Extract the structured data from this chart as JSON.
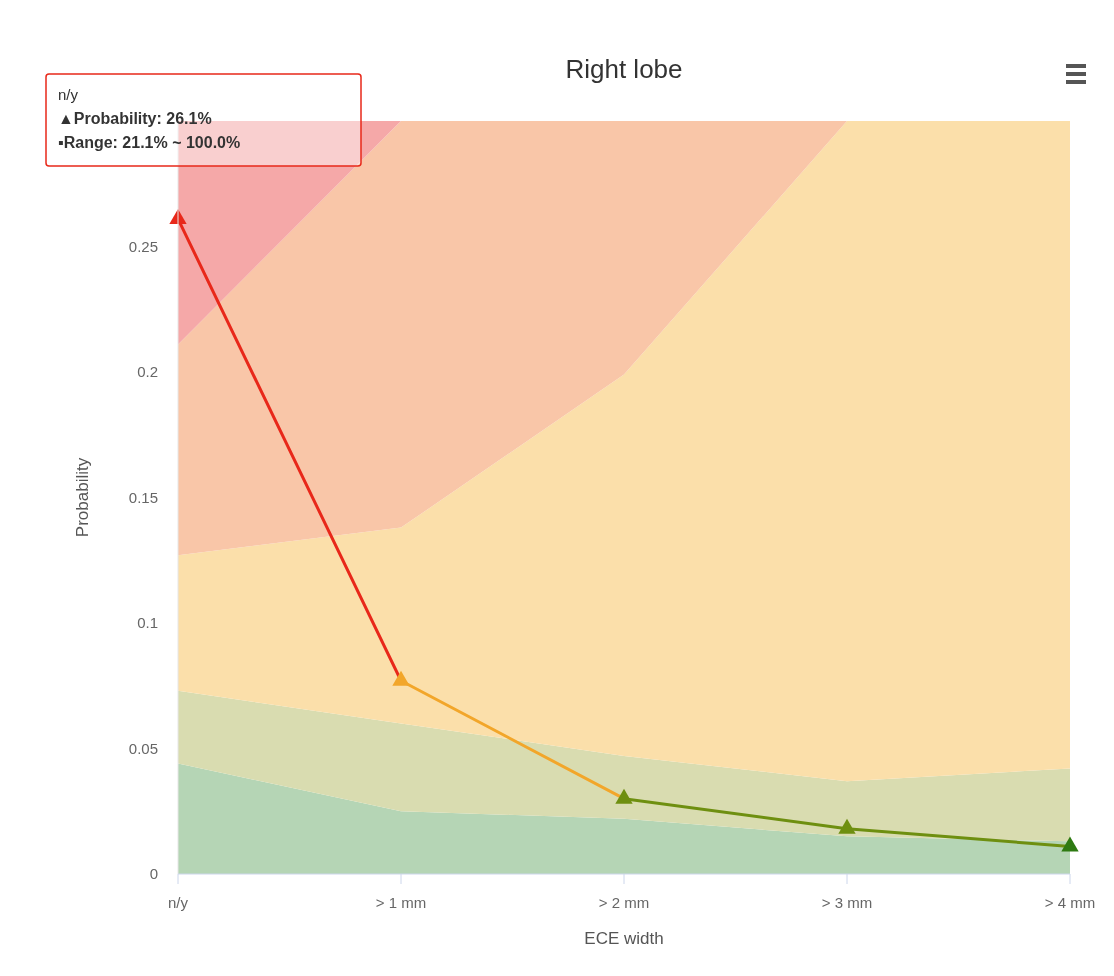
{
  "chart_data": {
    "type": "area",
    "title": "Right lobe",
    "xlabel": "ECE width",
    "ylabel": "Probability",
    "categories": [
      "n/y",
      "> 1 mm",
      "> 2 mm",
      "> 3 mm",
      "> 4 mm"
    ],
    "ylim": [
      0,
      0.3
    ],
    "yticks": [
      0,
      0.05,
      0.1,
      0.15,
      0.2,
      0.25
    ],
    "stacked": true,
    "series": [
      {
        "color": "#b5d5b5",
        "values": [
          0.044,
          0.025,
          0.022,
          0.015,
          0.013
        ]
      },
      {
        "color": "#d9dcb0",
        "values": [
          0.029,
          0.035,
          0.025,
          0.022,
          0.029
        ]
      },
      {
        "color": "#fbdfaa",
        "values": [
          0.054,
          0.078,
          0.152,
          0.263,
          0.258
        ]
      },
      {
        "color": "#f9c6a8",
        "values": [
          0.084,
          0.162,
          0.101,
          0,
          0
        ]
      },
      {
        "color": "#f5a8a8",
        "values": [
          0.089,
          0,
          0,
          0,
          0
        ]
      },
      {
        "type": "line",
        "marker": "triangle",
        "colors": [
          "#e8281a",
          "#f2a62a",
          "#6e8f10",
          "#6e8f10",
          "#2e7a12"
        ],
        "values": [
          0.261,
          0.077,
          0.03,
          0.018,
          0.011
        ]
      }
    ],
    "annotations": [
      "n/y",
      "▲Probability: 26.1%",
      "▪Range: 21.1% ~ 100.0%"
    ]
  }
}
